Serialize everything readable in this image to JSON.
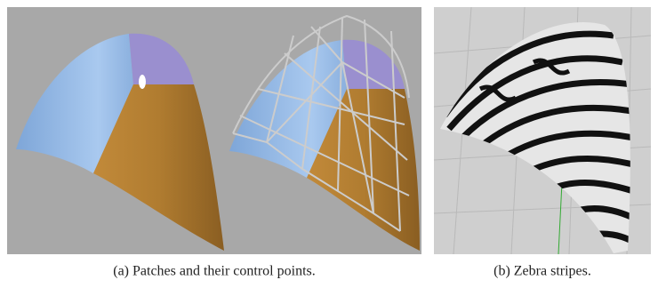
{
  "figure": {
    "captions": [
      "(a) Patches and their control points.",
      "(b) Zebra stripes."
    ]
  }
}
